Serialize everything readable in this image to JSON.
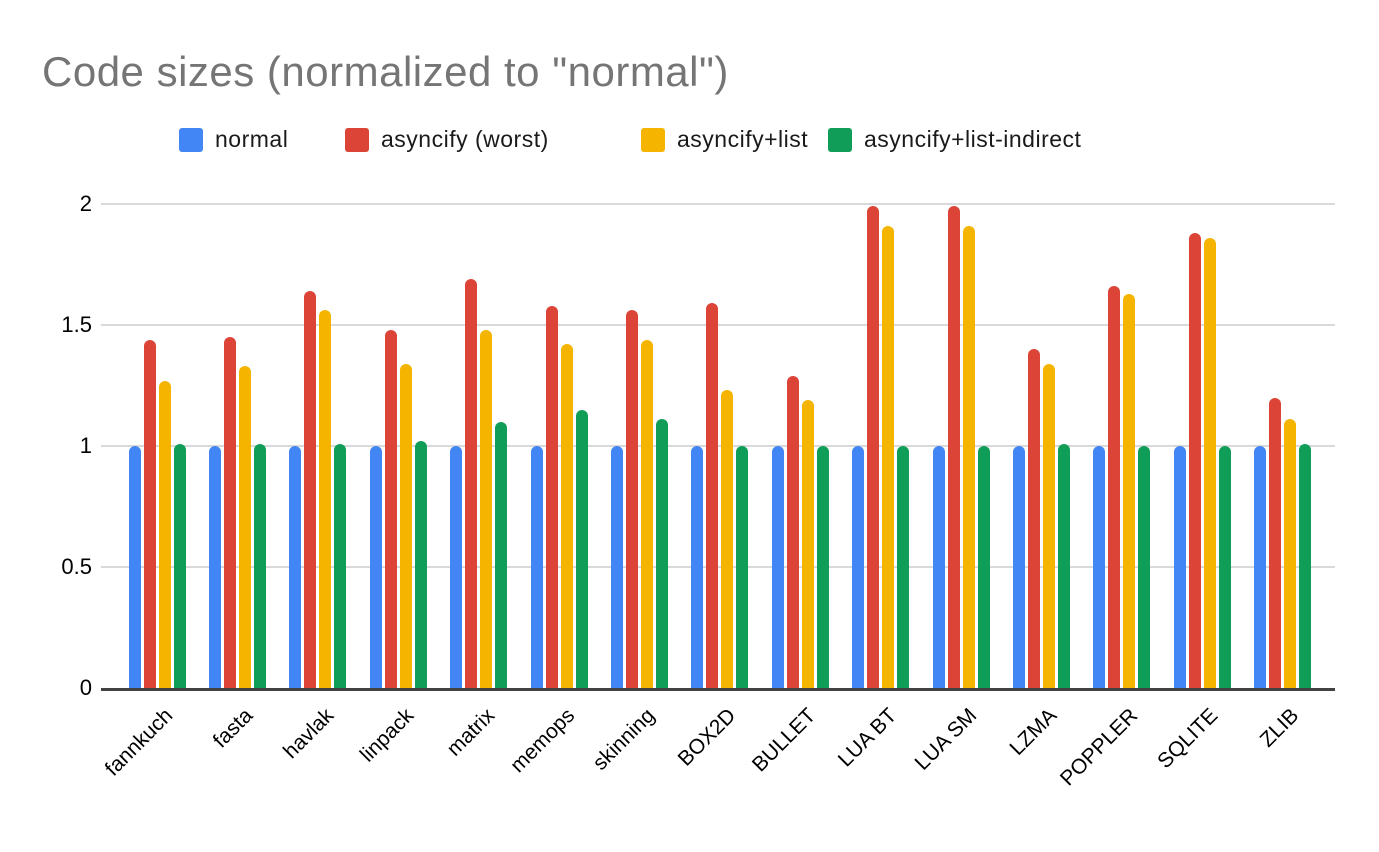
{
  "colors": {
    "background": "#ffffff",
    "title_text": "#757575",
    "axis_text": "#000000",
    "gridline": "#d9d9d9",
    "axis_line": "#424242"
  },
  "chart_data": {
    "type": "bar",
    "title": "Code sizes (normalized to \"normal\")",
    "xlabel": "",
    "ylabel": "",
    "ylim": [
      0,
      2
    ],
    "yticks": [
      "0",
      "0.5",
      "1",
      "1.5",
      "2"
    ],
    "ytick_values": [
      0,
      0.5,
      1,
      1.5,
      2
    ],
    "grid": true,
    "legend_position": "top",
    "categories": [
      "fannkuch",
      "fasta",
      "havlak",
      "linpack",
      "matrix",
      "memops",
      "skinning",
      "BOX2D",
      "BULLET",
      "LUA BT",
      "LUA SM",
      "LZMA",
      "POPPLER",
      "SQLITE",
      "ZLIB"
    ],
    "series": [
      {
        "name": "normal",
        "color": "#4285f4",
        "values": [
          1.0,
          1.0,
          1.0,
          1.0,
          1.0,
          1.0,
          1.0,
          1.0,
          1.0,
          1.0,
          1.0,
          1.0,
          1.0,
          1.0,
          1.0
        ]
      },
      {
        "name": "asyncify (worst)",
        "color": "#db4437",
        "values": [
          1.44,
          1.45,
          1.64,
          1.48,
          1.69,
          1.58,
          1.56,
          1.59,
          1.29,
          1.99,
          1.99,
          1.4,
          1.66,
          1.88,
          1.2
        ]
      },
      {
        "name": "asyncify+list",
        "color": "#f4b400",
        "values": [
          1.27,
          1.33,
          1.56,
          1.34,
          1.48,
          1.42,
          1.44,
          1.23,
          1.19,
          1.91,
          1.91,
          1.34,
          1.63,
          1.86,
          1.11
        ]
      },
      {
        "name": "asyncify+list-indirect",
        "color": "#0f9d58",
        "values": [
          1.01,
          1.01,
          1.01,
          1.02,
          1.1,
          1.15,
          1.11,
          1.0,
          1.0,
          1.0,
          1.0,
          1.01,
          1.0,
          1.0,
          1.01
        ]
      }
    ]
  }
}
